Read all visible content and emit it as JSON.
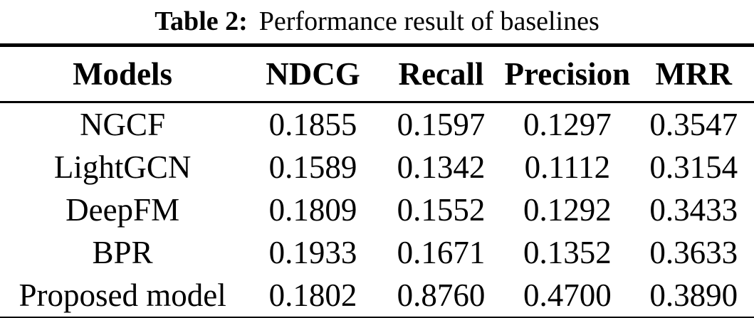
{
  "caption": {
    "label": "Table 2:",
    "text": "Performance result of baselines"
  },
  "table": {
    "columns": [
      "Models",
      "NDCG",
      "Recall",
      "Precision",
      "MRR"
    ],
    "rows": [
      {
        "model": "NGCF",
        "values": [
          "0.1855",
          "0.1597",
          "0.1297",
          "0.3547"
        ]
      },
      {
        "model": "LightGCN",
        "values": [
          "0.1589",
          "0.1342",
          "0.1112",
          "0.3154"
        ]
      },
      {
        "model": "DeepFM",
        "values": [
          "0.1809",
          "0.1552",
          "0.1292",
          "0.3433"
        ]
      },
      {
        "model": "BPR",
        "values": [
          "0.1933",
          "0.1671",
          "0.1352",
          "0.3633"
        ]
      },
      {
        "model": "Proposed model",
        "values": [
          "0.1802",
          "0.8760",
          "0.4700",
          "0.3890"
        ]
      }
    ]
  },
  "chart_data": {
    "type": "table",
    "title": "Table 2: Performance result of baselines",
    "categories": [
      "NGCF",
      "LightGCN",
      "DeepFM",
      "BPR",
      "Proposed model"
    ],
    "series": [
      {
        "name": "NDCG",
        "values": [
          0.1855,
          0.1589,
          0.1809,
          0.1933,
          0.1802
        ]
      },
      {
        "name": "Recall",
        "values": [
          0.1597,
          0.1342,
          0.1552,
          0.1671,
          0.876
        ]
      },
      {
        "name": "Precision",
        "values": [
          0.1297,
          0.1112,
          0.1292,
          0.1352,
          0.47
        ]
      },
      {
        "name": "MRR",
        "values": [
          0.3547,
          0.3154,
          0.3433,
          0.3633,
          0.389
        ]
      }
    ]
  },
  "colors": {
    "text": "#000000",
    "background": "#ffffff",
    "rule": "#000000"
  }
}
